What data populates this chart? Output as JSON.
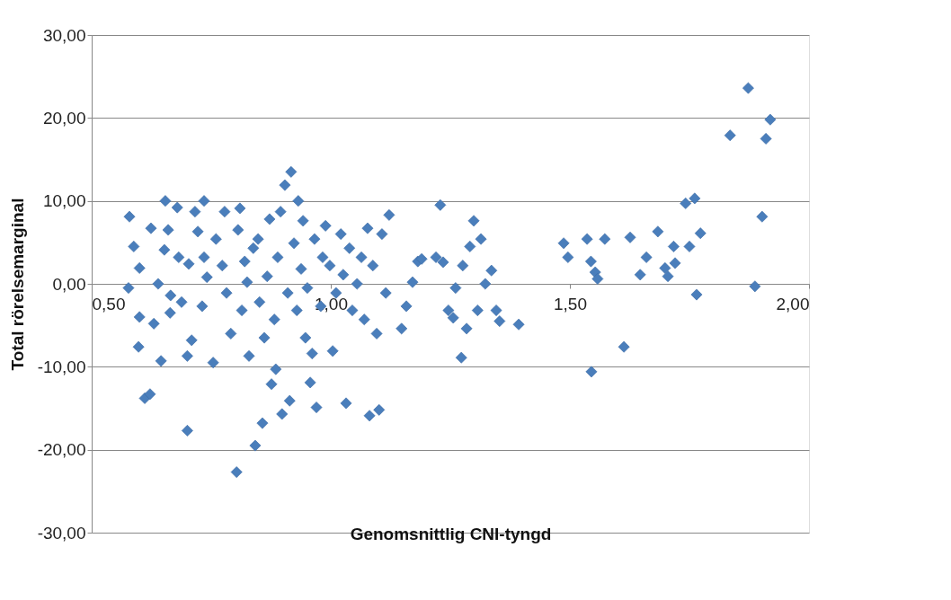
{
  "chart_data": {
    "type": "scatter",
    "xlabel": "Genomsnittlig CNI-tyngd",
    "ylabel": "Total rörelsemarginal",
    "xlim": [
      0.5,
      2.0
    ],
    "xticks": [
      {
        "value": 0.5,
        "label": "0,50"
      },
      {
        "value": 1.0,
        "label": "1,00"
      },
      {
        "value": 1.5,
        "label": "1,50"
      },
      {
        "value": 2.0,
        "label": "2,00"
      }
    ],
    "ylim": [
      -30,
      30
    ],
    "yticks": [
      {
        "value": -30,
        "label": "-30,00"
      },
      {
        "value": -20,
        "label": "-20,00"
      },
      {
        "value": -10,
        "label": "-10,00"
      },
      {
        "value": 0,
        "label": "0,00"
      },
      {
        "value": 10,
        "label": "10,00"
      },
      {
        "value": 20,
        "label": "20,00"
      },
      {
        "value": 30,
        "label": "30,00"
      }
    ],
    "grid": "y",
    "legend": false,
    "marker": "diamond",
    "series": [
      {
        "color": "#4a7ebb",
        "x": [
          0.579,
          0.577,
          0.588,
          0.6,
          0.6,
          0.598,
          0.611,
          0.622,
          0.624,
          0.63,
          0.639,
          0.645,
          0.654,
          0.66,
          0.652,
          0.665,
          0.664,
          0.679,
          0.682,
          0.688,
          0.7,
          0.7,
          0.709,
          0.703,
          0.716,
          0.722,
          0.735,
          0.731,
          0.735,
          0.741,
          0.754,
          0.76,
          0.773,
          0.778,
          0.782,
          0.791,
          0.803,
          0.806,
          0.81,
          0.814,
          0.82,
          0.825,
          0.829,
          0.838,
          0.842,
          0.848,
          0.851,
          0.857,
          0.861,
          0.867,
          0.872,
          0.876,
          0.882,
          0.885,
          0.889,
          0.895,
          0.898,
          0.904,
          0.91,
          0.914,
          0.917,
          0.923,
          0.929,
          0.932,
          0.938,
          0.942,
          0.947,
          0.951,
          0.957,
          0.961,
          0.966,
          0.97,
          0.979,
          0.983,
          0.989,
          0.998,
          1.004,
          1.011,
          1.021,
          1.026,
          1.032,
          1.039,
          1.045,
          1.055,
          1.064,
          1.07,
          1.077,
          1.081,
          1.088,
          1.096,
          1.101,
          1.107,
          1.115,
          1.122,
          1.148,
          1.158,
          1.171,
          1.182,
          1.19,
          1.22,
          1.229,
          1.235,
          1.246,
          1.256,
          1.261,
          1.273,
          1.276,
          1.284,
          1.291,
          1.299,
          1.307,
          1.314,
          1.323,
          1.336,
          1.346,
          1.353,
          1.393,
          1.487,
          1.496,
          1.536,
          1.544,
          1.545,
          1.553,
          1.558,
          1.573,
          1.613,
          1.626,
          1.647,
          1.66,
          1.684,
          1.699,
          1.705,
          1.717,
          1.72,
          1.742,
          1.75,
          1.761,
          1.765,
          1.773,
          1.835,
          1.873,
          1.887,
          1.902,
          1.91,
          1.919
        ],
        "values": [
          8.1,
          -0.5,
          4.5,
          1.9,
          -4.0,
          -7.6,
          -13.8,
          -13.3,
          6.7,
          -4.8,
          0,
          -9.3,
          10.0,
          6.5,
          4.1,
          -1.4,
          -3.5,
          9.2,
          3.2,
          -2.2,
          -8.7,
          -17.7,
          -6.8,
          2.4,
          8.7,
          6.3,
          10.0,
          -2.7,
          3.2,
          0.8,
          -9.5,
          5.4,
          2.2,
          8.7,
          -1.1,
          -6.0,
          -22.7,
          6.5,
          9.1,
          -3.2,
          2.7,
          0.2,
          -8.7,
          4.3,
          -19.5,
          5.4,
          -2.2,
          -16.8,
          -6.5,
          0.9,
          7.8,
          -12.1,
          -4.3,
          -10.3,
          3.2,
          8.7,
          -15.7,
          11.9,
          -1.1,
          -14.1,
          13.5,
          4.9,
          -3.2,
          10.0,
          1.8,
          7.6,
          -6.5,
          -0.5,
          -11.9,
          -8.4,
          5.4,
          -14.9,
          -2.7,
          3.2,
          7.0,
          2.2,
          -8.1,
          -1.1,
          6.0,
          1.1,
          -14.4,
          4.3,
          -3.2,
          0,
          3.2,
          -4.3,
          6.7,
          -15.9,
          2.2,
          -6.0,
          -15.2,
          6.0,
          -1.1,
          8.3,
          -5.4,
          -2.7,
          0.2,
          2.7,
          3.0,
          3.2,
          9.5,
          2.6,
          -3.2,
          -4.1,
          -0.5,
          -8.9,
          2.2,
          -5.4,
          4.5,
          7.6,
          -3.2,
          5.4,
          0,
          1.6,
          -3.2,
          -4.5,
          -4.9,
          4.9,
          3.2,
          5.4,
          2.7,
          -10.6,
          1.4,
          0.6,
          5.4,
          -7.6,
          5.6,
          1.1,
          3.2,
          6.3,
          1.9,
          0.9,
          4.5,
          2.5,
          9.7,
          4.5,
          10.3,
          -1.3,
          6.1,
          17.9,
          23.6,
          -0.3,
          8.1,
          17.5,
          19.8
        ]
      }
    ]
  }
}
